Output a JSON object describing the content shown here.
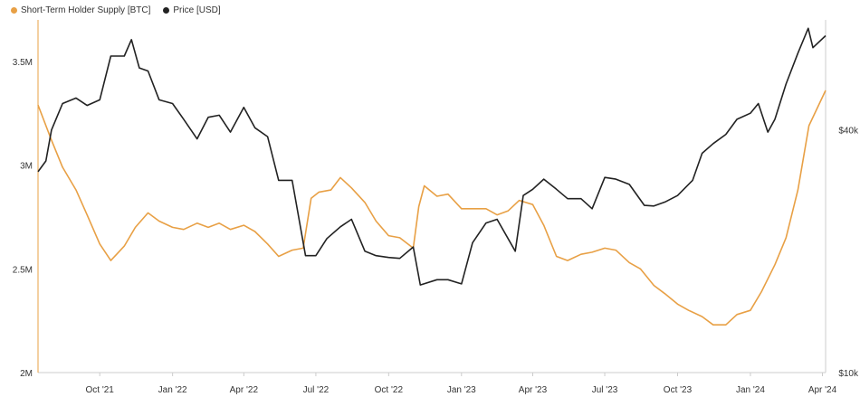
{
  "legend": {
    "items": [
      {
        "label": "Short-Term Holder Supply [BTC]",
        "color": "#e8a045"
      },
      {
        "label": "Price [USD]",
        "color": "#222222"
      }
    ]
  },
  "chart_data": {
    "type": "line",
    "grid": false,
    "legend_position": "top-left",
    "x_ticks": [
      "Oct '21",
      "Jan '22",
      "Apr '22",
      "Jul '22",
      "Oct '22",
      "Jan '23",
      "Apr '23",
      "Jul '23",
      "Oct '23",
      "Jan '24",
      "Apr '24"
    ],
    "x_tick_dates": [
      "2021-10-01",
      "2022-01-01",
      "2022-04-01",
      "2022-07-01",
      "2022-10-01",
      "2023-01-01",
      "2023-04-01",
      "2023-07-01",
      "2023-10-01",
      "2024-01-01",
      "2024-04-01"
    ],
    "x_range": [
      "2021-07-15",
      "2024-04-05"
    ],
    "y_left": {
      "label": "",
      "ticks": [
        "2M",
        "2.5M",
        "3M",
        "3.5M"
      ],
      "tick_values": [
        2000000,
        2500000,
        3000000,
        3500000
      ],
      "range": [
        2000000,
        3700000
      ]
    },
    "y_right": {
      "label": "",
      "scale": "log",
      "ticks": [
        "$10k",
        "$40k"
      ],
      "tick_values": [
        10000,
        40000
      ],
      "range": [
        10000,
        75000
      ]
    },
    "series": [
      {
        "name": "Short-Term Holder Supply [BTC]",
        "axis": "left",
        "color": "#e8a045",
        "points": [
          [
            "2021-07-15",
            3290000
          ],
          [
            "2021-08-01",
            3120000
          ],
          [
            "2021-08-15",
            2990000
          ],
          [
            "2021-09-01",
            2880000
          ],
          [
            "2021-09-15",
            2760000
          ],
          [
            "2021-10-01",
            2620000
          ],
          [
            "2021-10-15",
            2540000
          ],
          [
            "2021-11-01",
            2610000
          ],
          [
            "2021-11-15",
            2700000
          ],
          [
            "2021-12-01",
            2770000
          ],
          [
            "2021-12-15",
            2730000
          ],
          [
            "2022-01-01",
            2700000
          ],
          [
            "2022-01-15",
            2690000
          ],
          [
            "2022-02-01",
            2720000
          ],
          [
            "2022-02-15",
            2700000
          ],
          [
            "2022-03-01",
            2720000
          ],
          [
            "2022-03-15",
            2690000
          ],
          [
            "2022-04-01",
            2710000
          ],
          [
            "2022-04-15",
            2680000
          ],
          [
            "2022-05-01",
            2620000
          ],
          [
            "2022-05-15",
            2560000
          ],
          [
            "2022-06-01",
            2590000
          ],
          [
            "2022-06-15",
            2600000
          ],
          [
            "2022-06-25",
            2840000
          ],
          [
            "2022-07-05",
            2870000
          ],
          [
            "2022-07-20",
            2880000
          ],
          [
            "2022-08-01",
            2940000
          ],
          [
            "2022-08-15",
            2890000
          ],
          [
            "2022-09-01",
            2820000
          ],
          [
            "2022-09-15",
            2730000
          ],
          [
            "2022-10-01",
            2660000
          ],
          [
            "2022-10-15",
            2650000
          ],
          [
            "2022-11-01",
            2600000
          ],
          [
            "2022-11-08",
            2800000
          ],
          [
            "2022-11-15",
            2900000
          ],
          [
            "2022-12-01",
            2850000
          ],
          [
            "2022-12-15",
            2860000
          ],
          [
            "2023-01-01",
            2790000
          ],
          [
            "2023-01-15",
            2790000
          ],
          [
            "2023-02-01",
            2790000
          ],
          [
            "2023-02-15",
            2760000
          ],
          [
            "2023-03-01",
            2780000
          ],
          [
            "2023-03-15",
            2830000
          ],
          [
            "2023-04-01",
            2810000
          ],
          [
            "2023-04-15",
            2710000
          ],
          [
            "2023-05-01",
            2560000
          ],
          [
            "2023-05-15",
            2540000
          ],
          [
            "2023-06-01",
            2570000
          ],
          [
            "2023-06-15",
            2580000
          ],
          [
            "2023-07-01",
            2600000
          ],
          [
            "2023-07-15",
            2590000
          ],
          [
            "2023-08-01",
            2530000
          ],
          [
            "2023-08-15",
            2500000
          ],
          [
            "2023-09-01",
            2420000
          ],
          [
            "2023-09-15",
            2380000
          ],
          [
            "2023-10-01",
            2330000
          ],
          [
            "2023-10-15",
            2300000
          ],
          [
            "2023-11-01",
            2270000
          ],
          [
            "2023-11-15",
            2230000
          ],
          [
            "2023-12-01",
            2230000
          ],
          [
            "2023-12-15",
            2280000
          ],
          [
            "2024-01-01",
            2300000
          ],
          [
            "2024-01-15",
            2390000
          ],
          [
            "2024-02-01",
            2520000
          ],
          [
            "2024-02-15",
            2650000
          ],
          [
            "2024-03-01",
            2880000
          ],
          [
            "2024-03-15",
            3190000
          ],
          [
            "2024-04-05",
            3360000
          ]
        ]
      },
      {
        "name": "Price [USD]",
        "axis": "right",
        "color": "#222222",
        "points": [
          [
            "2021-07-15",
            31500
          ],
          [
            "2021-07-25",
            33500
          ],
          [
            "2021-08-01",
            40000
          ],
          [
            "2021-08-15",
            46500
          ],
          [
            "2021-09-01",
            48000
          ],
          [
            "2021-09-15",
            46000
          ],
          [
            "2021-10-01",
            47500
          ],
          [
            "2021-10-15",
            61000
          ],
          [
            "2021-11-01",
            61000
          ],
          [
            "2021-11-10",
            67000
          ],
          [
            "2021-11-20",
            57000
          ],
          [
            "2021-12-01",
            56000
          ],
          [
            "2021-12-15",
            47500
          ],
          [
            "2022-01-01",
            46500
          ],
          [
            "2022-01-15",
            42500
          ],
          [
            "2022-02-01",
            38000
          ],
          [
            "2022-02-15",
            43000
          ],
          [
            "2022-03-01",
            43500
          ],
          [
            "2022-03-15",
            39500
          ],
          [
            "2022-04-01",
            45500
          ],
          [
            "2022-04-15",
            40500
          ],
          [
            "2022-05-01",
            38500
          ],
          [
            "2022-05-15",
            30000
          ],
          [
            "2022-06-01",
            30000
          ],
          [
            "2022-06-18",
            19500
          ],
          [
            "2022-07-01",
            19500
          ],
          [
            "2022-07-15",
            21500
          ],
          [
            "2022-08-01",
            23000
          ],
          [
            "2022-08-15",
            24000
          ],
          [
            "2022-09-01",
            20000
          ],
          [
            "2022-09-15",
            19500
          ],
          [
            "2022-10-01",
            19300
          ],
          [
            "2022-10-15",
            19200
          ],
          [
            "2022-11-01",
            20500
          ],
          [
            "2022-11-10",
            16500
          ],
          [
            "2022-12-01",
            17000
          ],
          [
            "2022-12-15",
            17000
          ],
          [
            "2023-01-01",
            16600
          ],
          [
            "2023-01-15",
            21000
          ],
          [
            "2023-02-01",
            23500
          ],
          [
            "2023-02-15",
            24000
          ],
          [
            "2023-03-10",
            20000
          ],
          [
            "2023-03-20",
            27500
          ],
          [
            "2023-04-01",
            28500
          ],
          [
            "2023-04-15",
            30200
          ],
          [
            "2023-05-01",
            28500
          ],
          [
            "2023-05-15",
            27000
          ],
          [
            "2023-06-01",
            27000
          ],
          [
            "2023-06-15",
            25500
          ],
          [
            "2023-07-01",
            30500
          ],
          [
            "2023-07-15",
            30200
          ],
          [
            "2023-08-01",
            29300
          ],
          [
            "2023-08-20",
            26000
          ],
          [
            "2023-09-01",
            25900
          ],
          [
            "2023-09-15",
            26500
          ],
          [
            "2023-10-01",
            27500
          ],
          [
            "2023-10-20",
            30000
          ],
          [
            "2023-11-01",
            35000
          ],
          [
            "2023-11-15",
            37000
          ],
          [
            "2023-12-01",
            39000
          ],
          [
            "2023-12-15",
            42500
          ],
          [
            "2024-01-01",
            44000
          ],
          [
            "2024-01-11",
            46500
          ],
          [
            "2024-01-23",
            39500
          ],
          [
            "2024-02-01",
            42500
          ],
          [
            "2024-02-15",
            52000
          ],
          [
            "2024-03-01",
            62000
          ],
          [
            "2024-03-14",
            71500
          ],
          [
            "2024-03-20",
            64000
          ],
          [
            "2024-04-05",
            68500
          ]
        ]
      }
    ]
  }
}
